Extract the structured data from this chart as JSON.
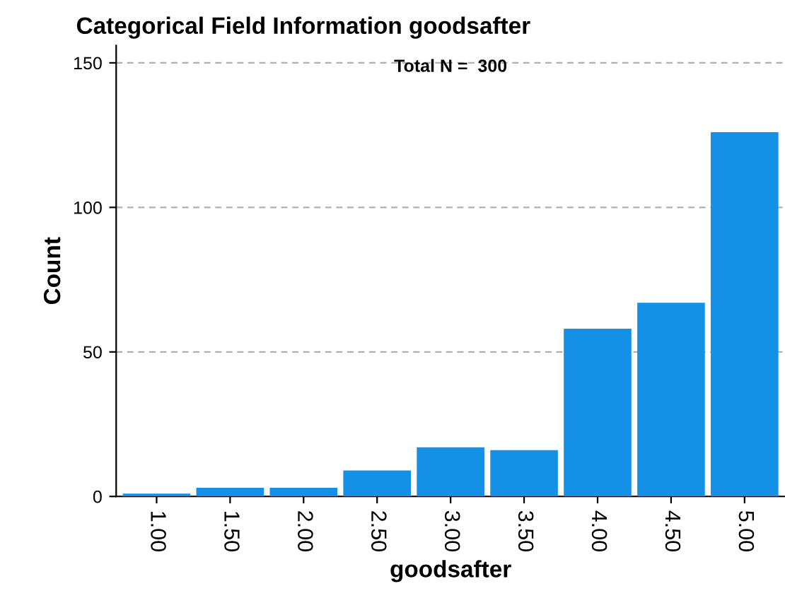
{
  "chart_data": {
    "type": "bar",
    "title": "Categorical Field Information goodsafter",
    "xlabel": "goodsafter",
    "ylabel": "Count",
    "categories": [
      "1.00",
      "1.50",
      "2.00",
      "2.50",
      "3.00",
      "3.50",
      "4.00",
      "4.50",
      "5.00"
    ],
    "values": [
      1,
      3,
      3,
      9,
      17,
      16,
      58,
      67,
      126
    ],
    "color": "#1491e6",
    "ylim": [
      0,
      156
    ],
    "yticks": [
      0,
      50,
      100,
      150
    ],
    "grid": "y",
    "annotations": [
      "Total N =  300"
    ]
  }
}
